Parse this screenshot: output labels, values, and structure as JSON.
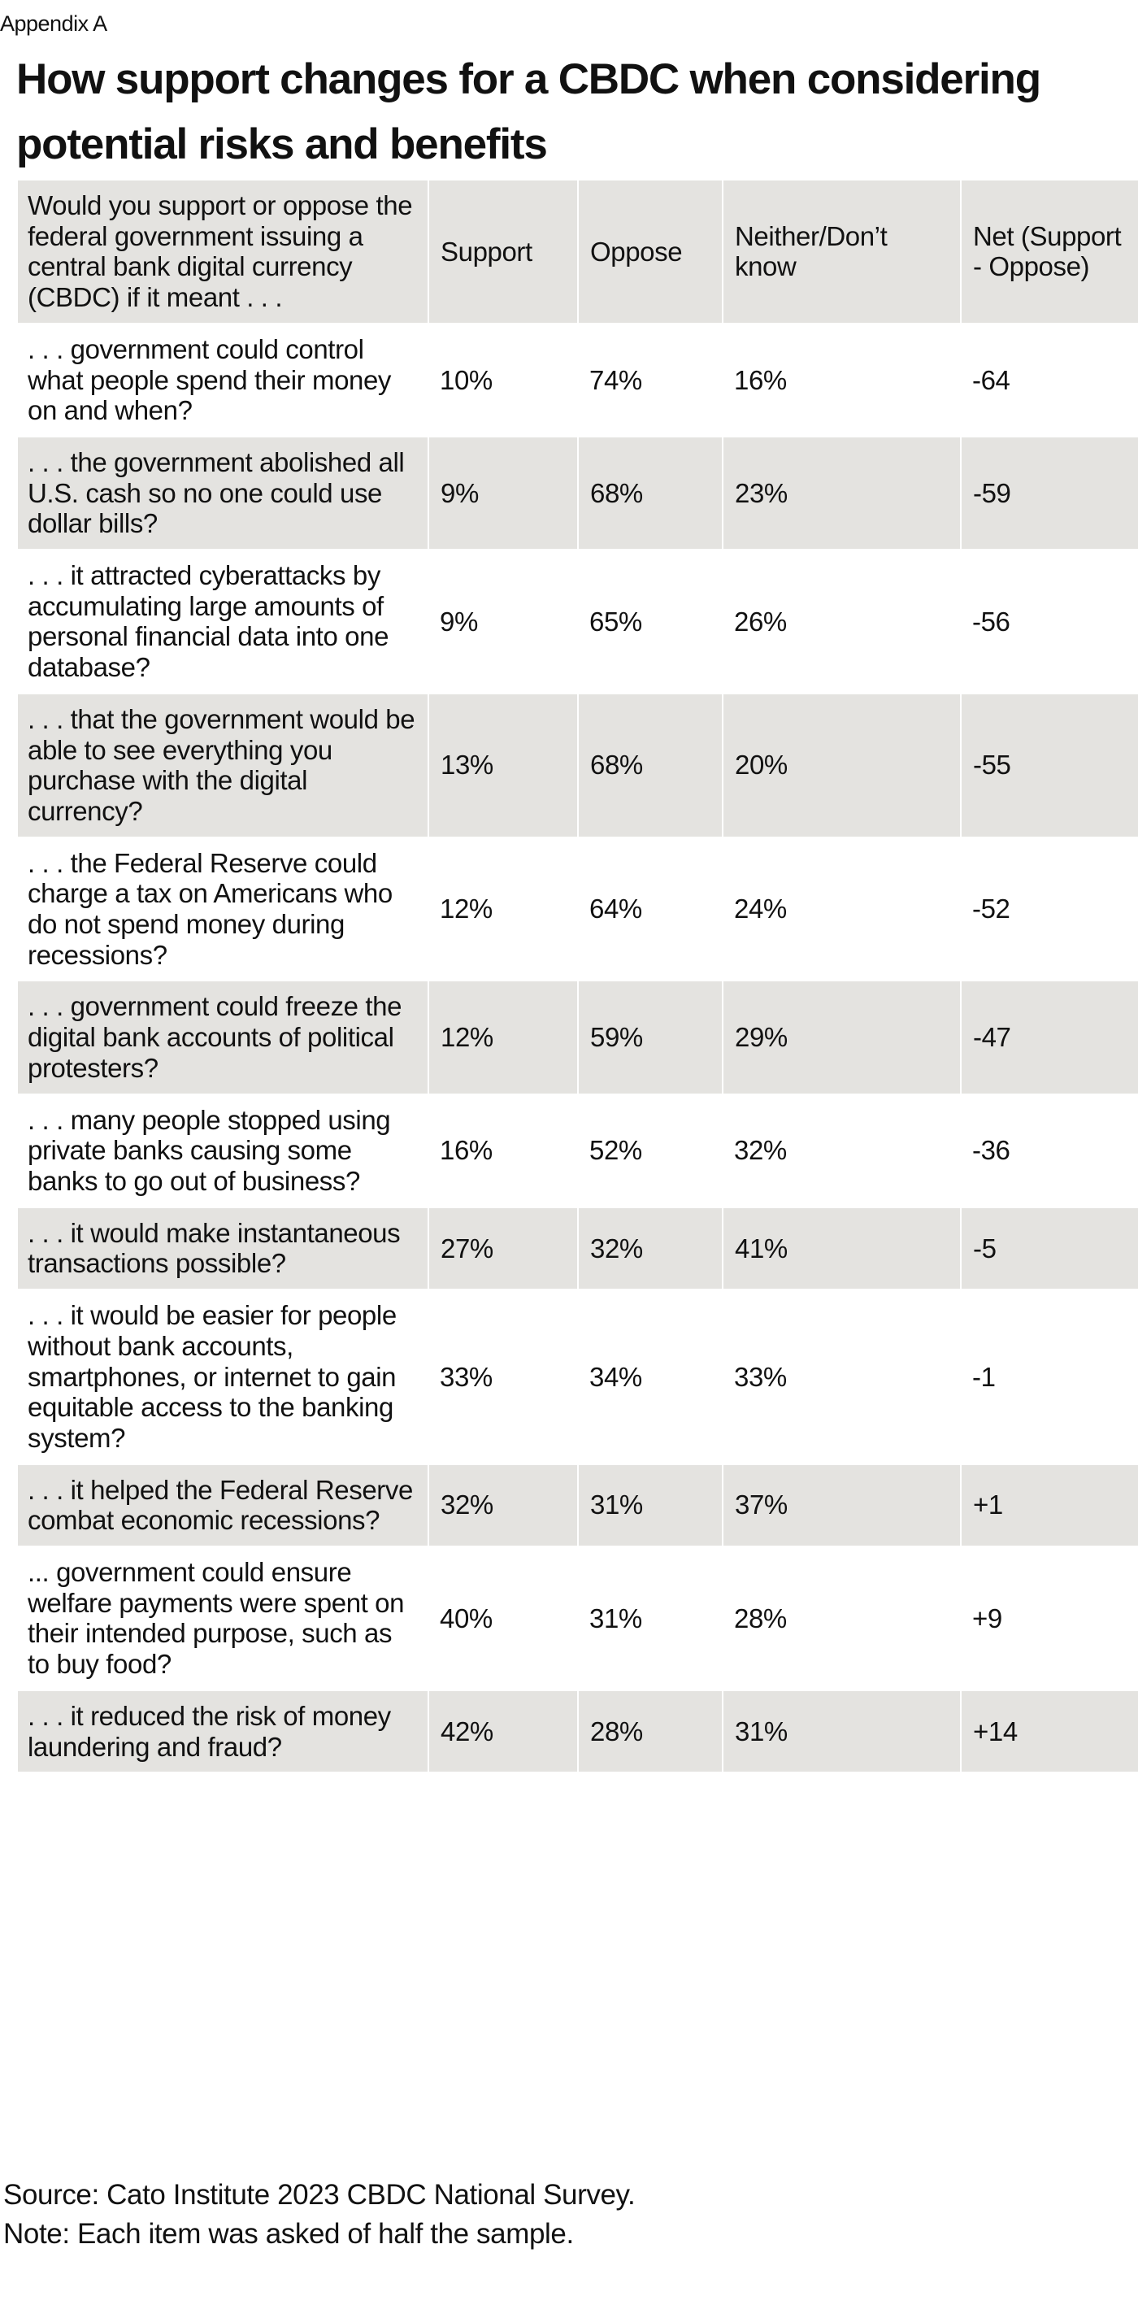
{
  "appendix_label": "Appendix A",
  "title": "How support changes for a CBDC when considering potential risks and benefits",
  "table": {
    "headers": [
      "Would you support or oppose the federal government issuing a central bank digital currency (CBDC) if it meant . . .",
      "Support",
      "Oppose",
      "Neither/Don’t know",
      "Net (Support - Oppose)"
    ],
    "rows": [
      {
        "question": ". . . government could control what people spend their money on and when?",
        "support": "10%",
        "oppose": "74%",
        "neither": "16%",
        "net": "-64"
      },
      {
        "question": ". . . the government abolished all U.S. cash so no one could use dollar bills?",
        "support": "9%",
        "oppose": "68%",
        "neither": "23%",
        "net": "-59"
      },
      {
        "question": ". . . it attracted cyberattacks by accumulating large amounts of personal financial data into one database?",
        "support": "9%",
        "oppose": "65%",
        "neither": "26%",
        "net": "-56"
      },
      {
        "question": ". . . that the government would be able to see everything you purchase with the digital currency?",
        "support": "13%",
        "oppose": "68%",
        "neither": "20%",
        "net": "-55"
      },
      {
        "question": ". . . the Federal Reserve could charge a tax on Americans who do not spend money during recessions?",
        "support": "12%",
        "oppose": "64%",
        "neither": "24%",
        "net": "-52"
      },
      {
        "question": ". . . government could freeze the digital bank accounts of political protesters?",
        "support": "12%",
        "oppose": "59%",
        "neither": "29%",
        "net": "-47"
      },
      {
        "question": ". . . many people stopped using private banks causing some banks to go out of business?",
        "support": "16%",
        "oppose": "52%",
        "neither": "32%",
        "net": "-36"
      },
      {
        "question": ". . . it would make instantaneous transactions possible?",
        "support": "27%",
        "oppose": "32%",
        "neither": "41%",
        "net": "-5"
      },
      {
        "question": ". . . it would be easier for people without bank accounts, smartphones, or internet to gain equitable access to the banking system?",
        "support": "33%",
        "oppose": "34%",
        "neither": "33%",
        "net": "-1"
      },
      {
        "question": ". . . it helped the Federal Reserve combat economic recessions?",
        "support": "32%",
        "oppose": "31%",
        "neither": "37%",
        "net": "+1"
      },
      {
        "question": "... government could ensure welfare payments were spent on their intended purpose, such as to buy food?",
        "support": "40%",
        "oppose": "31%",
        "neither": "28%",
        "net": "+9"
      },
      {
        "question": ". . . it reduced the risk of money laundering and fraud?",
        "support": "42%",
        "oppose": "28%",
        "neither": "31%",
        "net": "+14"
      }
    ]
  },
  "source": "Source: Cato Institute 2023 CBDC National Survey.",
  "note": "Note: Each item was asked of half the sample.",
  "colors": {
    "row_shade": "#e4e3e0",
    "text": "#111111"
  }
}
